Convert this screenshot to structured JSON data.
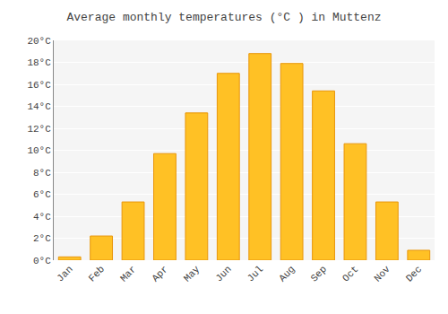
{
  "chart_data": {
    "type": "bar",
    "title": "Average monthly temperatures (°C ) in Muttenz",
    "categories": [
      "Jan",
      "Feb",
      "Mar",
      "Apr",
      "May",
      "Jun",
      "Jul",
      "Aug",
      "Sep",
      "Oct",
      "Nov",
      "Dec"
    ],
    "values": [
      0.3,
      2.2,
      5.3,
      9.7,
      13.4,
      17.0,
      18.8,
      17.9,
      15.4,
      10.6,
      5.3,
      0.9
    ],
    "color": "#FFC125",
    "ylim": [
      0,
      20
    ],
    "yticks": [
      {
        "value": 0,
        "label": "0°C"
      },
      {
        "value": 2,
        "label": "2°C"
      },
      {
        "value": 4,
        "label": "4°C"
      },
      {
        "value": 6,
        "label": "6°C"
      },
      {
        "value": 8,
        "label": "8°C"
      },
      {
        "value": 10,
        "label": "10°C"
      },
      {
        "value": 12,
        "label": "12°C"
      },
      {
        "value": 14,
        "label": "14°C"
      },
      {
        "value": 16,
        "label": "16°C"
      },
      {
        "value": 18,
        "label": "18°C"
      },
      {
        "value": 20,
        "label": "20°C"
      }
    ],
    "grid": true
  }
}
